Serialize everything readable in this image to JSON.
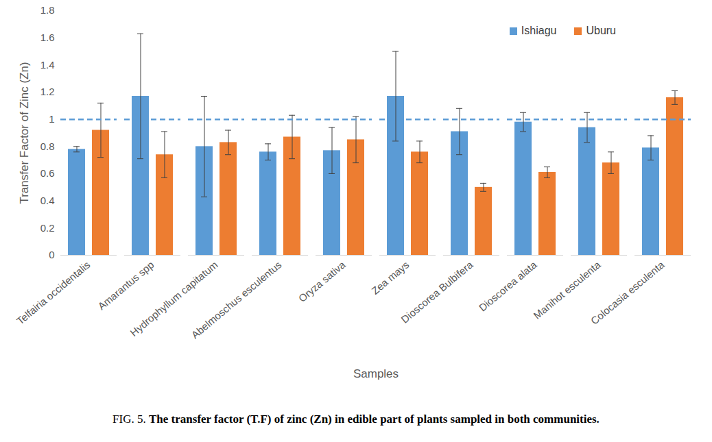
{
  "chart_data": {
    "type": "bar",
    "figure_label": "FIG. 5.",
    "title": "The transfer factor (T.F) of zinc (Zn) in edible part of plants sampled in both communities.",
    "x_label": "Samples",
    "y_label": "Transfer Factor of Zinc (Zn)",
    "categories": [
      "Telfairia occidentalis",
      "Amarantus spp",
      "Hydrophyllum capitatum",
      "Abelmoschus esculentus",
      "Oryza sativa",
      "Zea mays",
      "Dioscorea Bulbifera",
      "Dioscorea alata",
      "Manihot esculenta",
      "Colocasia esculenta"
    ],
    "series": [
      {
        "name": "Ishiagu",
        "color": "#5b9bd5",
        "values": [
          0.78,
          1.17,
          0.8,
          0.76,
          0.77,
          1.17,
          0.91,
          0.98,
          0.94,
          0.79
        ],
        "errors": [
          0.02,
          0.46,
          0.37,
          0.06,
          0.17,
          0.33,
          0.17,
          0.07,
          0.11,
          0.09
        ]
      },
      {
        "name": "Uburu",
        "color": "#ed7d31",
        "values": [
          0.92,
          0.74,
          0.83,
          0.87,
          0.85,
          0.76,
          0.5,
          0.61,
          0.68,
          1.16
        ],
        "errors": [
          0.2,
          0.17,
          0.09,
          0.16,
          0.17,
          0.08,
          0.03,
          0.04,
          0.08,
          0.05
        ]
      }
    ],
    "reference_line": 1,
    "ylim": [
      0,
      1.8
    ],
    "yticks": [
      0,
      0.2,
      0.4,
      0.6,
      0.8,
      1,
      1.2,
      1.4,
      1.6,
      1.8
    ],
    "grid": false,
    "legend": "top-right"
  }
}
